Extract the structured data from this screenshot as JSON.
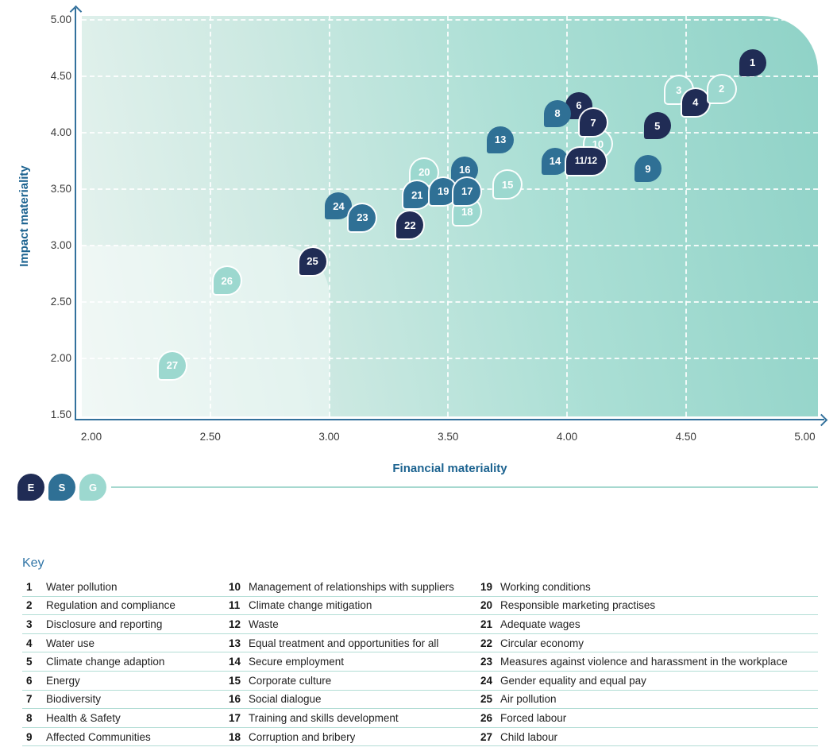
{
  "colors": {
    "category_E": "#202c55",
    "category_S": "#2f7095",
    "category_G": "#9cd8cf",
    "axis": "#33719c",
    "axis_title": "#1c6390",
    "tick_text": "#3a3a3a",
    "plot_bg_light": "#e7f3ef",
    "plot_bg_dark": "#8fd2c7",
    "gridline": "#ffffff",
    "key_title": "#2f74a6",
    "key_separator": "#b2ddd5",
    "legend_line": "#a6d8cf"
  },
  "chart_data": {
    "type": "scatter",
    "title": "",
    "xlabel": "Financial materiality",
    "ylabel": "Impact materiality",
    "xlim": [
      2.0,
      5.0
    ],
    "ylim": [
      1.5,
      5.0
    ],
    "grid": "white dashed, on",
    "legend_position": "bottom-left",
    "x_ticks": [
      {
        "v": 2.0,
        "label": "2.00"
      },
      {
        "v": 2.5,
        "label": "2.50"
      },
      {
        "v": 3.0,
        "label": "3.00"
      },
      {
        "v": 3.5,
        "label": "3.50"
      },
      {
        "v": 4.0,
        "label": "4.00"
      },
      {
        "v": 4.5,
        "label": "4.50"
      },
      {
        "v": 5.0,
        "label": "5.00"
      }
    ],
    "y_ticks": [
      {
        "v": 5.0,
        "label": "5.00"
      },
      {
        "v": 4.5,
        "label": "4.50"
      },
      {
        "v": 4.0,
        "label": "4.00"
      },
      {
        "v": 3.5,
        "label": "3.50"
      },
      {
        "v": 3.0,
        "label": "3.00"
      },
      {
        "v": 2.5,
        "label": "2.50"
      },
      {
        "v": 2.0,
        "label": "2.00"
      },
      {
        "v": 1.5,
        "label": "1.50"
      }
    ],
    "x_gridlines": [
      2.5,
      3.0,
      3.5,
      4.0,
      4.5
    ],
    "y_gridlines": [
      2.0,
      2.5,
      3.0,
      3.5,
      4.0,
      4.5,
      5.0
    ],
    "legend": [
      {
        "label": "E",
        "color": "#202c55"
      },
      {
        "label": "S",
        "color": "#2f7095"
      },
      {
        "label": "G",
        "color": "#9cd8cf"
      }
    ],
    "points": [
      {
        "label": "1",
        "category": "E",
        "x": 4.78,
        "y": 4.62,
        "z": 1,
        "ring": false
      },
      {
        "label": "2",
        "category": "G",
        "x": 4.65,
        "y": 4.39,
        "z": 3,
        "ring": true
      },
      {
        "label": "3",
        "category": "G",
        "x": 4.47,
        "y": 4.38,
        "z": 1,
        "ring": true
      },
      {
        "label": "4",
        "category": "E",
        "x": 4.54,
        "y": 4.27,
        "z": 2,
        "ring": true
      },
      {
        "label": "5",
        "category": "E",
        "x": 4.38,
        "y": 4.06,
        "z": 1,
        "ring": false
      },
      {
        "label": "6",
        "category": "E",
        "x": 4.05,
        "y": 4.24,
        "z": 1,
        "ring": false
      },
      {
        "label": "7",
        "category": "E",
        "x": 4.11,
        "y": 4.09,
        "z": 3,
        "ring": true
      },
      {
        "label": "8",
        "category": "S",
        "x": 3.96,
        "y": 4.17,
        "z": 2,
        "ring": false
      },
      {
        "label": "9",
        "category": "S",
        "x": 4.34,
        "y": 3.68,
        "z": 1,
        "ring": false
      },
      {
        "label": "10",
        "category": "G",
        "x": 4.13,
        "y": 3.9,
        "z": 2,
        "ring": true
      },
      {
        "label": "11/12",
        "category": "E",
        "x": 4.08,
        "y": 3.75,
        "z": 4,
        "ring": true,
        "wide": true
      },
      {
        "label": "13",
        "category": "S",
        "x": 3.72,
        "y": 3.94,
        "z": 1,
        "ring": false
      },
      {
        "label": "14",
        "category": "S",
        "x": 3.95,
        "y": 3.75,
        "z": 3,
        "ring": false
      },
      {
        "label": "15",
        "category": "G",
        "x": 3.75,
        "y": 3.54,
        "z": 2,
        "ring": true
      },
      {
        "label": "16",
        "category": "S",
        "x": 3.57,
        "y": 3.67,
        "z": 1,
        "ring": false
      },
      {
        "label": "17",
        "category": "S",
        "x": 3.58,
        "y": 3.48,
        "z": 6,
        "ring": true
      },
      {
        "label": "18",
        "category": "G",
        "x": 3.58,
        "y": 3.3,
        "z": 2,
        "ring": true
      },
      {
        "label": "19",
        "category": "S",
        "x": 3.48,
        "y": 3.48,
        "z": 5,
        "ring": true
      },
      {
        "label": "20",
        "category": "G",
        "x": 3.4,
        "y": 3.65,
        "z": 1,
        "ring": true
      },
      {
        "label": "21",
        "category": "S",
        "x": 3.37,
        "y": 3.45,
        "z": 4,
        "ring": true
      },
      {
        "label": "22",
        "category": "E",
        "x": 3.34,
        "y": 3.18,
        "z": 6,
        "ring": true
      },
      {
        "label": "23",
        "category": "S",
        "x": 3.14,
        "y": 3.25,
        "z": 2,
        "ring": true
      },
      {
        "label": "24",
        "category": "S",
        "x": 3.04,
        "y": 3.35,
        "z": 1,
        "ring": false
      },
      {
        "label": "25",
        "category": "E",
        "x": 2.93,
        "y": 2.86,
        "z": 3,
        "ring": true
      },
      {
        "label": "26",
        "category": "G",
        "x": 2.57,
        "y": 2.69,
        "z": 1,
        "ring": true
      },
      {
        "label": "27",
        "category": "G",
        "x": 2.34,
        "y": 1.94,
        "z": 1,
        "ring": true
      }
    ]
  },
  "key": {
    "title": "Key",
    "columns": [
      [
        {
          "n": "1",
          "label": "Water pollution"
        },
        {
          "n": "2",
          "label": "Regulation and compliance"
        },
        {
          "n": "3",
          "label": "Disclosure and reporting"
        },
        {
          "n": "4",
          "label": "Water use"
        },
        {
          "n": "5",
          "label": "Climate change adaption"
        },
        {
          "n": "6",
          "label": "Energy"
        },
        {
          "n": "7",
          "label": "Biodiversity"
        },
        {
          "n": "8",
          "label": "Health & Safety"
        },
        {
          "n": "9",
          "label": "Affected Communities"
        }
      ],
      [
        {
          "n": "10",
          "label": "Management of relationships with suppliers"
        },
        {
          "n": "11",
          "label": "Climate change mitigation"
        },
        {
          "n": "12",
          "label": "Waste"
        },
        {
          "n": "13",
          "label": "Equal treatment and opportunities for all"
        },
        {
          "n": "14",
          "label": "Secure employment"
        },
        {
          "n": "15",
          "label": "Corporate culture"
        },
        {
          "n": "16",
          "label": "Social dialogue"
        },
        {
          "n": "17",
          "label": "Training and skills development"
        },
        {
          "n": "18",
          "label": "Corruption and bribery"
        }
      ],
      [
        {
          "n": "19",
          "label": "Working conditions"
        },
        {
          "n": "20",
          "label": "Responsible marketing practises"
        },
        {
          "n": "21",
          "label": "Adequate wages"
        },
        {
          "n": "22",
          "label": "Circular economy"
        },
        {
          "n": "23",
          "label": "Measures against violence and harassment in the workplace"
        },
        {
          "n": "24",
          "label": "Gender equality and equal pay"
        },
        {
          "n": "25",
          "label": "Air pollution"
        },
        {
          "n": "26",
          "label": "Forced labour"
        },
        {
          "n": "27",
          "label": "Child labour"
        }
      ]
    ]
  }
}
